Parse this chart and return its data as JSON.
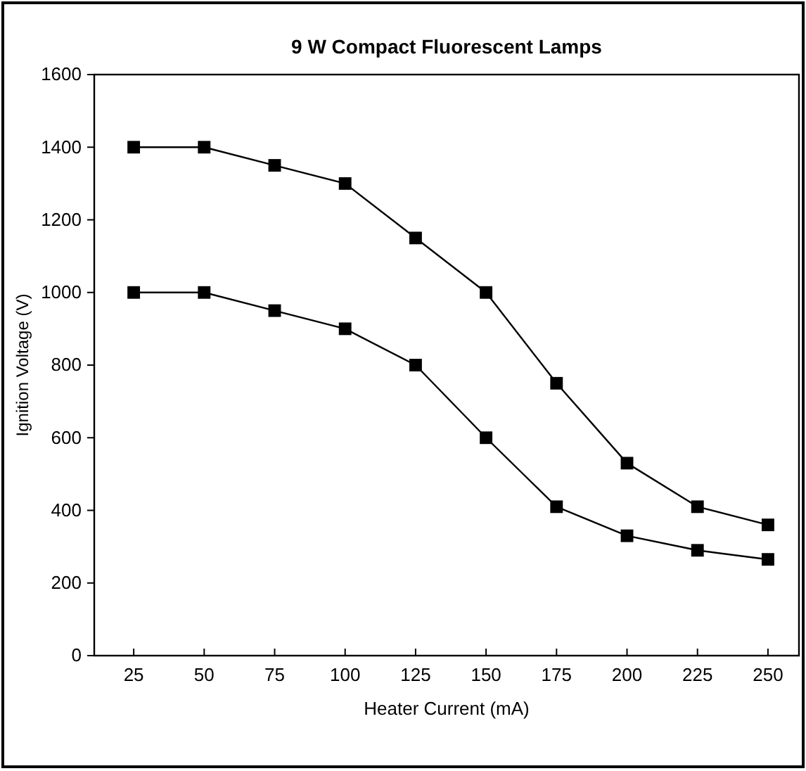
{
  "chart_data": {
    "type": "line",
    "title": "9 W Compact Fluorescent Lamps",
    "xlabel": "Heater Current (mA)",
    "ylabel": "Ignition Voltage (V)",
    "x": [
      25,
      50,
      75,
      100,
      125,
      150,
      175,
      200,
      225,
      250
    ],
    "series": [
      {
        "color": "#000000",
        "values": [
          1400,
          1400,
          1350,
          1300,
          1150,
          1000,
          750,
          530,
          410,
          360
        ]
      },
      {
        "color": "#000000",
        "values": [
          1000,
          1000,
          950,
          900,
          800,
          600,
          410,
          330,
          290,
          265
        ]
      }
    ],
    "xlim": [
      11,
      261
    ],
    "xticks": [
      25,
      50,
      75,
      100,
      125,
      150,
      175,
      200,
      225,
      250
    ],
    "ylim": [
      0,
      1600
    ],
    "yticks": [
      0,
      200,
      400,
      600,
      800,
      1000,
      1200,
      1400,
      1600
    ],
    "marker": "square",
    "line_style": "solid"
  }
}
